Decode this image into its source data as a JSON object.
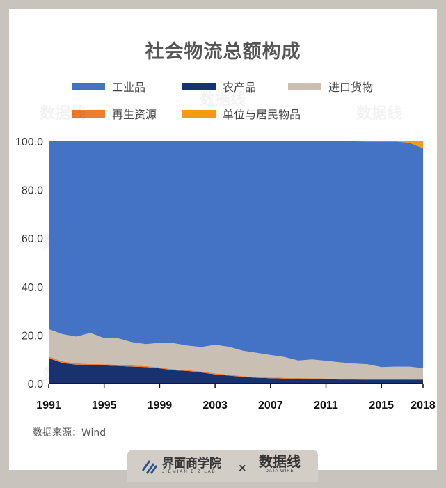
{
  "title": "社会物流总额构成",
  "source": "数据来源：Wind",
  "footer": {
    "brand1_name": "界面商学院",
    "brand1_sub": "JIEMIAN BIZ LAB",
    "separator": "×",
    "brand2_name": "数据线",
    "brand2_sub": "DATA WIRE"
  },
  "colors": {
    "industrial": "#4472c4",
    "agricultural": "#17326e",
    "imports": "#c9bfb2",
    "recycled": "#ed7d31",
    "units": "#f39c12"
  },
  "legend": [
    {
      "label": "工业品",
      "color": "#4472c4"
    },
    {
      "label": "农产品",
      "color": "#17326e"
    },
    {
      "label": "进口货物",
      "color": "#c9bfb2"
    },
    {
      "label": "再生资源",
      "color": "#ed7d31"
    },
    {
      "label": "单位与居民物品",
      "color": "#f39c12"
    }
  ],
  "chart_data": {
    "type": "area",
    "stacked": true,
    "x": [
      1991,
      1992,
      1993,
      1994,
      1995,
      1996,
      1997,
      1998,
      1999,
      2000,
      2001,
      2002,
      2003,
      2004,
      2005,
      2006,
      2007,
      2008,
      2009,
      2010,
      2011,
      2012,
      2013,
      2014,
      2015,
      2016,
      2017,
      2018
    ],
    "x_ticks": [
      "1991",
      "1995",
      "1999",
      "2003",
      "2007",
      "2011",
      "2015",
      "2018"
    ],
    "y_ticks": [
      "0.0",
      "20.0",
      "40.0",
      "60.0",
      "80.0",
      "100.0"
    ],
    "ylim": [
      0,
      100
    ],
    "grid": false,
    "legend_position": "top",
    "series": [
      {
        "name": "农产品",
        "values": [
          10.5,
          8.5,
          7.8,
          7.5,
          7.5,
          7.3,
          7.0,
          6.8,
          6.3,
          5.5,
          5.2,
          4.6,
          3.8,
          3.3,
          2.8,
          2.4,
          2.2,
          2.1,
          2.0,
          1.9,
          1.8,
          1.7,
          1.7,
          1.6,
          1.6,
          1.6,
          1.6,
          1.6
        ]
      },
      {
        "name": "再生资源",
        "values": [
          0.7,
          0.6,
          0.6,
          0.6,
          0.5,
          0.5,
          0.5,
          0.4,
          0.4,
          0.4,
          0.4,
          0.4,
          0.4,
          0.4,
          0.3,
          0.3,
          0.3,
          0.3,
          0.3,
          0.3,
          0.3,
          0.3,
          0.3,
          0.3,
          0.3,
          0.3,
          0.3,
          0.3
        ]
      },
      {
        "name": "进口货物",
        "values": [
          11.3,
          11.3,
          11.0,
          12.8,
          10.8,
          10.9,
          9.6,
          9.1,
          10.1,
          10.8,
          10.1,
          10.1,
          11.8,
          11.5,
          10.5,
          10.0,
          9.3,
          8.6,
          7.2,
          7.8,
          7.3,
          6.8,
          6.3,
          6.1,
          4.9,
          5.1,
          5.1,
          4.5
        ]
      },
      {
        "name": "工业品",
        "values": [
          77.5,
          79.6,
          80.6,
          79.1,
          81.2,
          81.3,
          82.9,
          83.7,
          83.2,
          83.3,
          84.3,
          84.9,
          84.0,
          84.8,
          86.4,
          87.3,
          88.2,
          89.0,
          90.5,
          90.0,
          90.6,
          91.2,
          91.7,
          91.9,
          93.1,
          92.9,
          92.4,
          90.8
        ]
      },
      {
        "name": "单位与居民物品",
        "values": [
          0,
          0,
          0,
          0,
          0,
          0,
          0,
          0,
          0,
          0,
          0,
          0,
          0,
          0,
          0,
          0,
          0,
          0,
          0,
          0,
          0,
          0,
          0,
          0,
          0.1,
          0.1,
          0.6,
          2.8
        ]
      }
    ]
  }
}
